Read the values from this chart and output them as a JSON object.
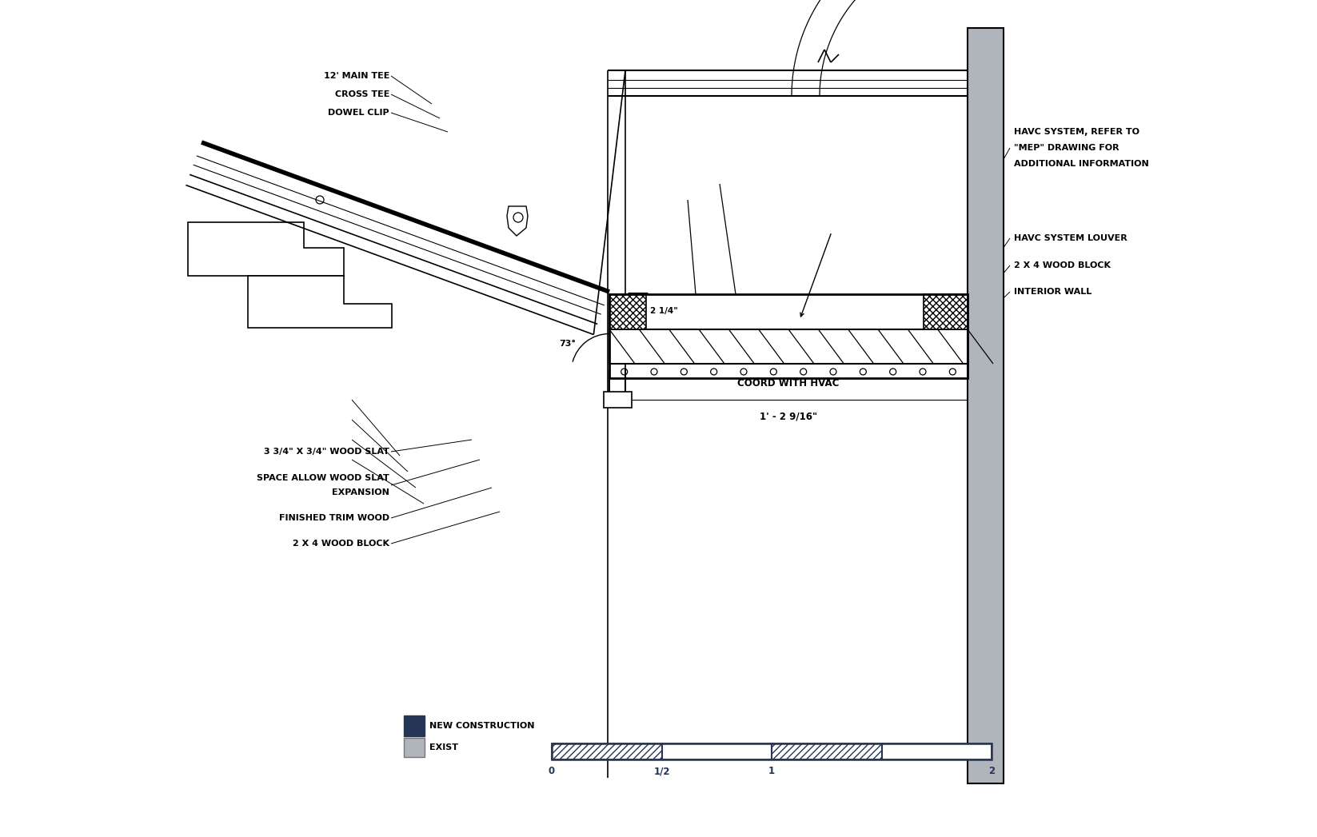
{
  "bg_color": "#ffffff",
  "lc": "#000000",
  "dark_blue": "#253555",
  "wall_gray": "#b0b5bb",
  "dim_height": "2 1/4\"",
  "dim_angle": "73°",
  "coord_label": "COORD WITH HVAC",
  "coord_dim": "1' - 2 9/16\"",
  "scale_ticks": [
    "0",
    "1/2",
    "1",
    "2"
  ],
  "legend_new": "NEW CONSTRUCTION",
  "legend_exist": "EXIST",
  "label_12main": "12' MAIN TEE",
  "label_crosstee": "CROSS TEE",
  "label_dowel": "DOWEL CLIP",
  "label_woodslat": "3 3/4\" X 3/4\" WOOD SLAT",
  "label_space1": "SPACE ALLOW WOOD SLAT",
  "label_space2": "EXPANSION",
  "label_trimwood": "FINISHED TRIM WOOD",
  "label_woodblock_l": "2 X 4 WOOD BLOCK",
  "label_havc_sys": "HAVC SYSTEM, REFER TO",
  "label_havc_sys2": "\"MEP\" DRAWING FOR",
  "label_havc_sys3": "ADDITIONAL INFORMATION",
  "label_havc_louver": "HAVC SYSTEM LOUVER",
  "label_woodblock_r": "2 X 4 WOOD BLOCK",
  "label_interiorwall": "INTERIOR WALL"
}
